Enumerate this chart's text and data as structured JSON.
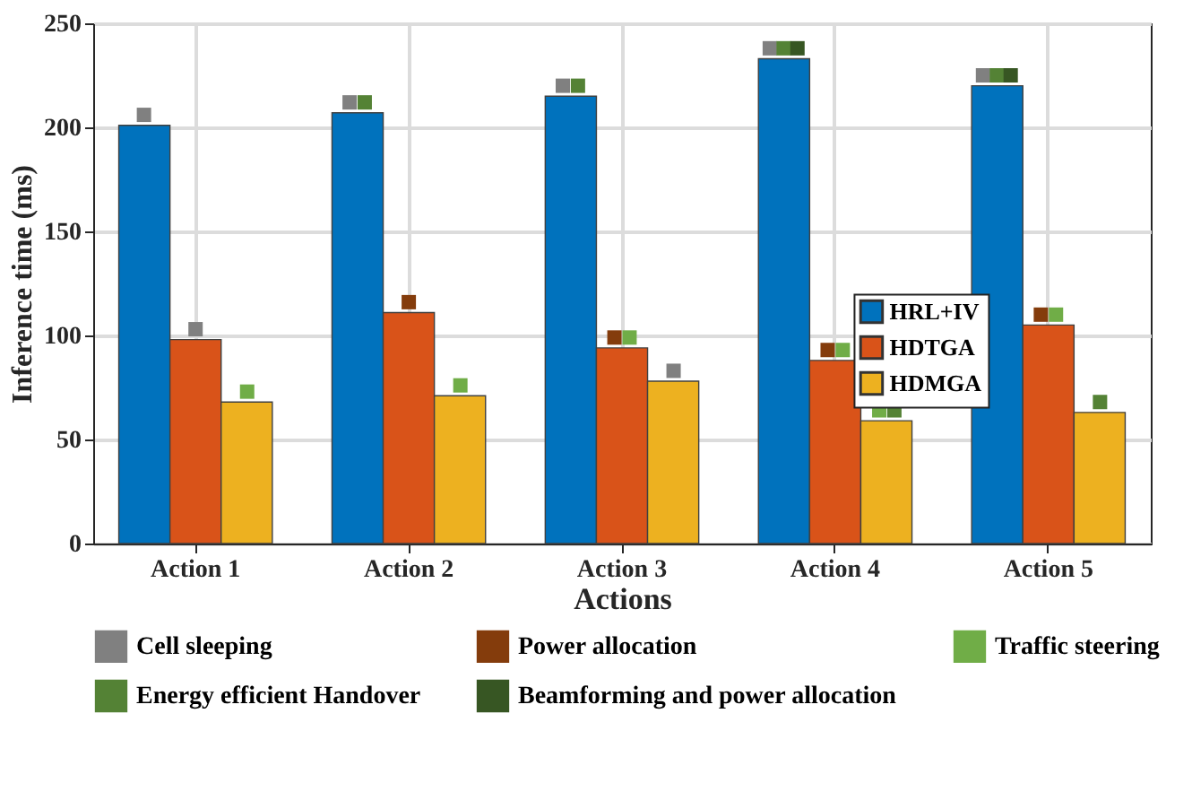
{
  "chart_data": {
    "type": "bar",
    "xlabel": "Actions",
    "ylabel": "Inference time (ms)",
    "categories": [
      "Action 1",
      "Action 2",
      "Action 3",
      "Action 4",
      "Action 5"
    ],
    "ylim": [
      0,
      250
    ],
    "yticks": [
      0,
      50,
      100,
      150,
      200,
      250
    ],
    "grid": true,
    "legend": "right",
    "marker": "square",
    "series": [
      {
        "name": "HRL+IV",
        "color": "#0072bd",
        "values": [
          201,
          207,
          215,
          233,
          220
        ]
      },
      {
        "name": "HDTGA",
        "color": "#d95319",
        "values": [
          98,
          111,
          94,
          88,
          105
        ]
      },
      {
        "name": "HDMGA",
        "color": "#edb120",
        "values": [
          68,
          71,
          78,
          59,
          63
        ]
      },
      {
        "name": "Cell sleeping",
        "type": "scatter",
        "color": "#808080",
        "x": [
          "Action 1",
          "Action 1",
          "Action 2",
          "Action 3",
          "Action 3",
          "Action 4",
          "Action 5"
        ],
        "values": [
          206,
          103,
          212,
          220,
          83,
          238,
          225
        ]
      },
      {
        "name": "Power allocation",
        "type": "scatter",
        "color": "#843c0c",
        "x": [
          "Action 2",
          "Action 3",
          "Action 4",
          "Action 5"
        ],
        "values": [
          116,
          99,
          93,
          110
        ]
      },
      {
        "name": "Traffic steering",
        "type": "scatter",
        "color": "#70ad47",
        "x": [
          "Action 1",
          "Action 2",
          "Action 3",
          "Action 4",
          "Action 4",
          "Action 5"
        ],
        "values": [
          73,
          76,
          99,
          93,
          64,
          110
        ]
      },
      {
        "name": "Energy efficient Handover",
        "type": "scatter",
        "color": "#548235",
        "x": [
          "Action 2",
          "Action 3",
          "Action 4",
          "Action 4",
          "Action 5",
          "Action 5"
        ],
        "values": [
          212,
          220,
          238,
          64,
          225,
          68
        ]
      },
      {
        "name": "Beamforming and power allocation",
        "type": "scatter",
        "color": "#375623",
        "x": [
          "Action 4",
          "Action 5"
        ],
        "values": [
          238,
          225
        ]
      }
    ]
  }
}
